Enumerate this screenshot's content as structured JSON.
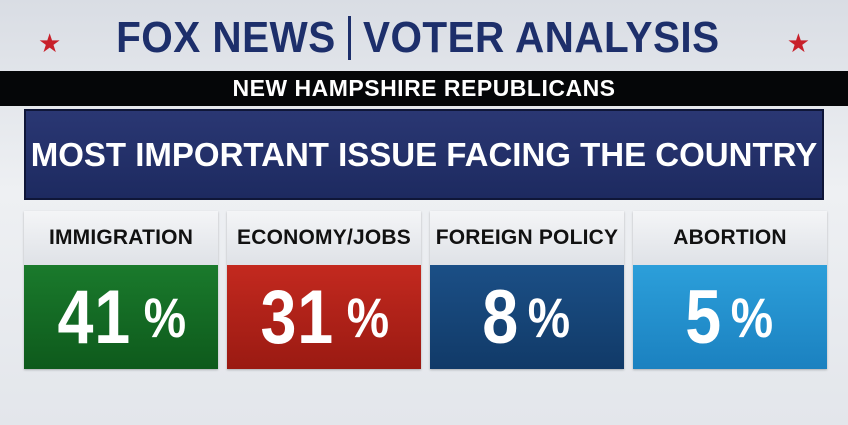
{
  "brand": {
    "network": "FOX NEWS",
    "product": "VOTER ANALYSIS"
  },
  "subtitle": "NEW HAMPSHIRE REPUBLICANS",
  "question": "MOST IMPORTANT ISSUE FACING THE COUNTRY",
  "results": [
    {
      "label": "IMMIGRATION",
      "value": "41",
      "unit": "%",
      "color": "#137023"
    },
    {
      "label": "ECONOMY/JOBS",
      "value": "31",
      "unit": "%",
      "color": "#b5241a"
    },
    {
      "label": "FOREIGN POLICY",
      "value": "8",
      "unit": "%",
      "color": "#16477a"
    },
    {
      "label": "ABORTION",
      "value": "5",
      "unit": "%",
      "color": "#2593d0"
    }
  ],
  "colors": {
    "brand_navy": "#1d2f6b",
    "star_red": "#c8202a",
    "question_bg": "#24316b"
  }
}
